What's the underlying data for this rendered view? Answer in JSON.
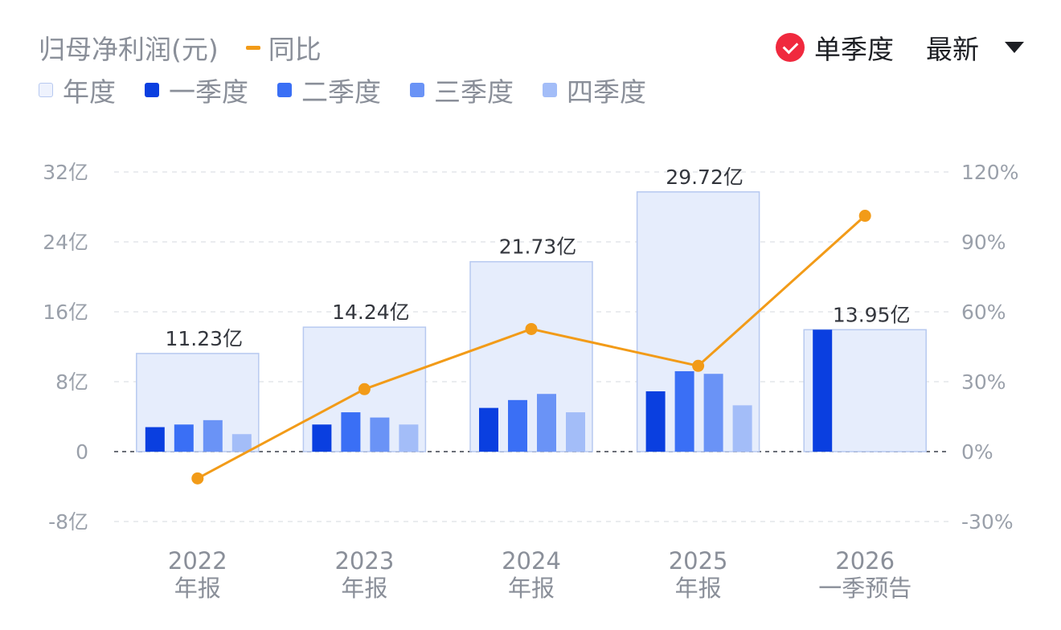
{
  "header": {
    "title": "归母净利润(元)",
    "yoy_legend": "同比",
    "single_quarter_label": "单季度",
    "latest_label": "最新"
  },
  "colors": {
    "annual": "#e6edfc",
    "annual_border": "#b7c9f0",
    "q1": "#0a3fe0",
    "q2": "#3a6ff5",
    "q3": "#6a93f6",
    "q4": "#a3bdf8",
    "yoy": "#f29b18",
    "check": "#f0293e"
  },
  "chart_data": {
    "type": "bar",
    "categories": [
      "2022|年报",
      "2023|年报",
      "2024|年报",
      "2025|年报",
      "2026|一季预告"
    ],
    "series": [
      {
        "name": "年度",
        "values": [
          11.23,
          14.24,
          21.73,
          29.72,
          13.95
        ]
      },
      {
        "name": "一季度",
        "values": [
          2.8,
          3.1,
          5.0,
          6.9,
          13.95
        ]
      },
      {
        "name": "二季度",
        "values": [
          3.1,
          4.5,
          5.9,
          9.2,
          null
        ]
      },
      {
        "name": "三季度",
        "values": [
          3.6,
          3.9,
          6.6,
          8.9,
          null
        ]
      },
      {
        "name": "四季度",
        "values": [
          2.0,
          3.1,
          4.5,
          5.3,
          null
        ]
      },
      {
        "name": "同比",
        "axis": "right",
        "values": [
          -11.5,
          26.8,
          52.6,
          36.8,
          101.2
        ]
      }
    ],
    "annual_labels": [
      "11.23亿",
      "14.24亿",
      "21.73亿",
      "29.72亿",
      "13.95亿"
    ],
    "ylim": [
      -8,
      32
    ],
    "yticks": [
      "32亿",
      "24亿",
      "16亿",
      "8亿",
      "0",
      "-8亿"
    ],
    "y2lim": [
      -30,
      120
    ],
    "y2ticks": [
      "120%",
      "90%",
      "60%",
      "30%",
      "0%",
      "-30%"
    ],
    "grid": true,
    "legend": "top-left"
  }
}
